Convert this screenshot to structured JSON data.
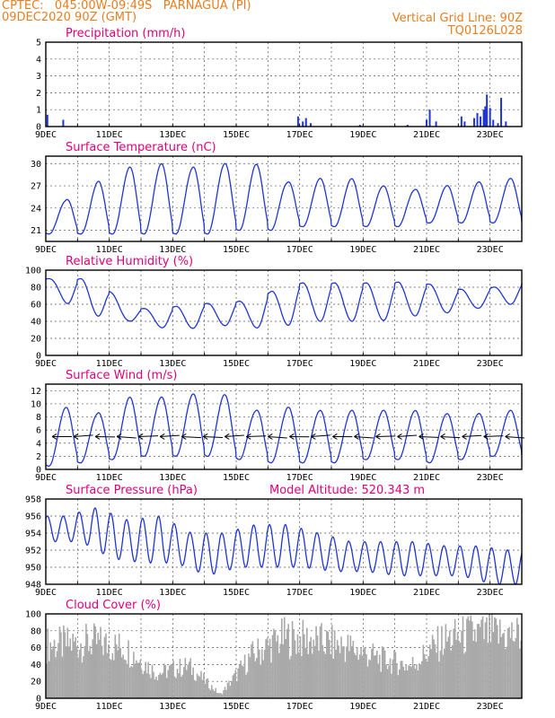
{
  "header": {
    "line1_left": "CPTEC:   045:00W-09:49S   PARNAGUA (PI)",
    "line2_left": "09DEC2020 90Z (GMT)",
    "line1_right": "Vertical Grid Line: 90Z",
    "line2_right": "TQ0126L028"
  },
  "colors": {
    "header_orange": "#e67e22",
    "title_magenta": "#e0007a",
    "series_blue": "#1f35d6",
    "cloud_gray": "#a9a9a9"
  },
  "x_ticks": [
    "9DEC",
    "11DEC",
    "13DEC",
    "15DEC",
    "17DEC",
    "19DEC",
    "21DEC",
    "23DEC"
  ],
  "chart_data": [
    {
      "id": "precip",
      "type": "bar",
      "title": "Precipitation (mm/h)",
      "ylim": [
        0,
        5
      ],
      "yticks": [
        0,
        1,
        2,
        3,
        4,
        5
      ],
      "grid": true,
      "x_range_days": [
        9,
        24
      ],
      "x": [
        9.05,
        9.55,
        16.95,
        17.1,
        17.2,
        17.35,
        18.9,
        20.4,
        21.0,
        21.1,
        21.3,
        22.1,
        22.2,
        22.5,
        22.6,
        22.7,
        22.8,
        22.85,
        22.9,
        23.0,
        23.1,
        23.25,
        23.35,
        23.5
      ],
      "values": [
        0.7,
        0.4,
        0.6,
        0.3,
        0.5,
        0.2,
        0.1,
        0.1,
        0.4,
        1.0,
        0.3,
        0.6,
        0.3,
        0.5,
        0.8,
        0.6,
        1.0,
        1.2,
        1.9,
        1.1,
        0.4,
        0.2,
        1.7,
        0.3
      ]
    },
    {
      "id": "temp",
      "type": "line",
      "title": "Surface Temperature (nC)",
      "ylim": [
        19.5,
        31
      ],
      "yticks": [
        21,
        24,
        27,
        30
      ],
      "grid": true,
      "x_range_days": [
        9,
        24
      ],
      "daily_min": [
        20.5,
        20.5,
        20.5,
        20.5,
        20.5,
        20.5,
        21,
        21,
        21.5,
        21.5,
        21.5,
        21.5,
        22,
        22,
        22
      ],
      "daily_max": [
        25,
        27.5,
        29.5,
        30,
        29.5,
        30,
        30,
        27.5,
        28,
        28,
        27,
        26.5,
        27,
        27.5,
        28
      ]
    },
    {
      "id": "rh",
      "type": "line",
      "title": "Relative Humidity (%)",
      "ylim": [
        0,
        100
      ],
      "yticks": [
        0,
        20,
        40,
        60,
        80,
        100
      ],
      "grid": true,
      "x_range_days": [
        9,
        24
      ],
      "daily_min": [
        75,
        50,
        43,
        38,
        28,
        35,
        35,
        30,
        40,
        40,
        40,
        42,
        50,
        50,
        60
      ],
      "daily_max": [
        90,
        90,
        55,
        55,
        60,
        62,
        65,
        85,
        85,
        85,
        85,
        87,
        80,
        75,
        85
      ]
    },
    {
      "id": "wind",
      "type": "line",
      "title": "Surface Wind (m/s)",
      "ylim": [
        0,
        13
      ],
      "yticks": [
        0,
        2,
        4,
        6,
        8,
        10,
        12
      ],
      "grid": true,
      "x_range_days": [
        9,
        24
      ],
      "daily_min": [
        0.5,
        1,
        1.5,
        2,
        2,
        2,
        1.5,
        1,
        1,
        1,
        1.5,
        1.5,
        1,
        1.5,
        2
      ],
      "daily_max": [
        9.5,
        8.5,
        11,
        11,
        11.5,
        11.5,
        9,
        9.5,
        9,
        9,
        9,
        9,
        8.5,
        8.5,
        9
      ]
    },
    {
      "id": "pressure",
      "type": "line",
      "title": "Surface Pressure (hPa)",
      "subtitle": "Model Altitude: 520.343 m",
      "ylim": [
        948,
        958
      ],
      "yticks": [
        948,
        950,
        952,
        954,
        956,
        958
      ],
      "grid": true,
      "x_range_days": [
        9,
        24
      ],
      "daily_min": [
        953,
        953,
        951,
        950.5,
        950.5,
        949,
        950,
        950,
        950,
        949.5,
        949.5,
        949,
        949,
        949,
        948
      ],
      "daily_max": [
        956,
        957,
        955.5,
        956,
        954,
        954,
        955,
        955,
        954,
        953,
        953,
        953,
        952.5,
        952.5,
        952
      ]
    },
    {
      "id": "cloud",
      "type": "bar",
      "title": "Cloud Cover (%)",
      "ylim": [
        0,
        100
      ],
      "yticks": [
        0,
        20,
        40,
        60,
        80,
        100
      ],
      "grid": true,
      "x_range_days": [
        9,
        24
      ],
      "daily_cover": [
        75,
        78,
        70,
        35,
        45,
        5,
        60,
        85,
        80,
        72,
        55,
        45,
        80,
        90,
        88
      ]
    }
  ]
}
